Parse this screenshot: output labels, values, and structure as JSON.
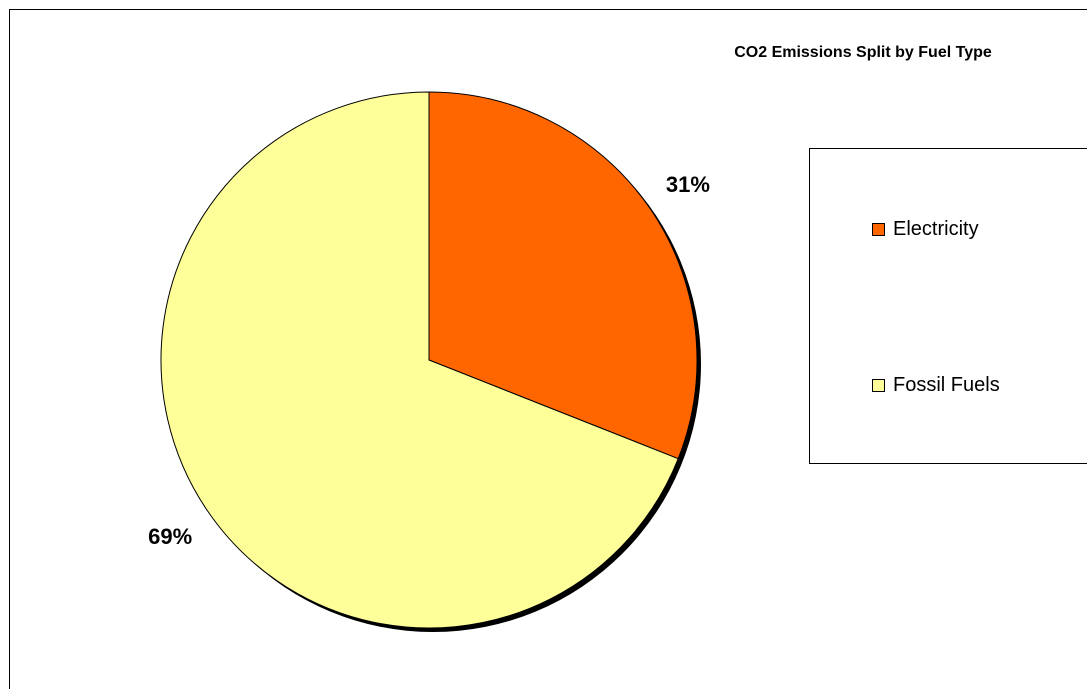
{
  "chart_data": {
    "type": "pie",
    "title": "CO2 Emissions Split by Fuel Type",
    "slices": [
      {
        "name": "Electricity",
        "value": 31,
        "label": "31%",
        "color": "#ff6600"
      },
      {
        "name": "Fossil Fuels",
        "value": 69,
        "label": "69%",
        "color": "#ffff99"
      }
    ],
    "start_angle_deg": 0,
    "direction": "clockwise",
    "legend_position": "right",
    "data_labels": true
  }
}
